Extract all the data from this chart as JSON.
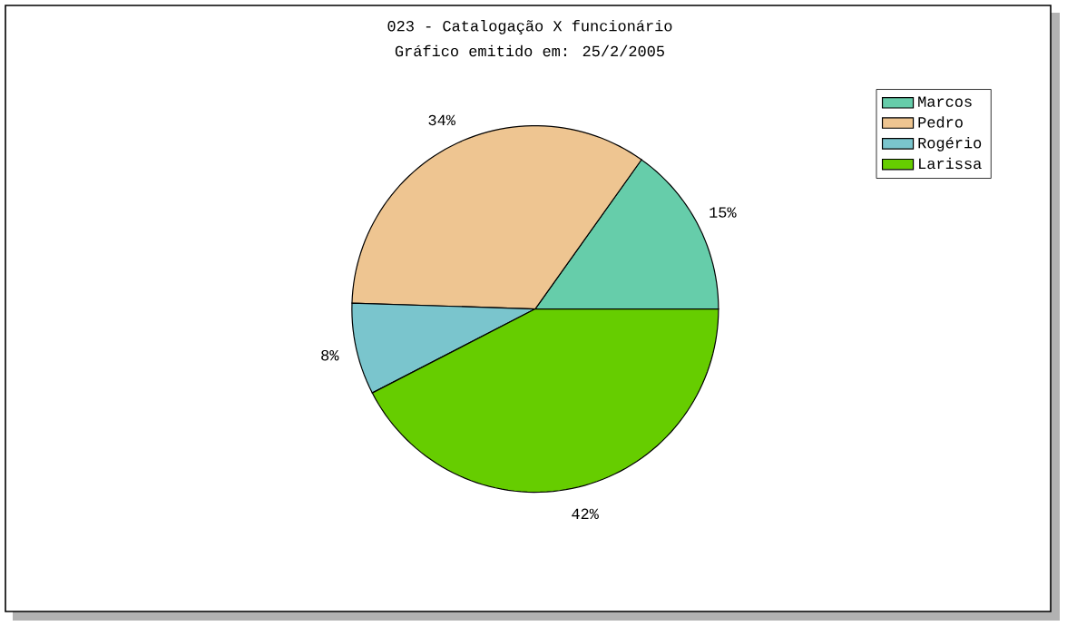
{
  "chart_data": {
    "type": "pie",
    "title": "023 - Catalogação X funcionário",
    "subtitle": "Gráfico emitido em: 25/2/2005",
    "categories": [
      "Marcos",
      "Pedro",
      "Rogério",
      "Larissa"
    ],
    "values": [
      15,
      34,
      8,
      42
    ],
    "value_labels": [
      "15%",
      "34%",
      "8%",
      "42%"
    ],
    "colors": [
      "#66cdaa",
      "#eec591",
      "#7ac5cd",
      "#66cd00"
    ],
    "legend": "top right"
  }
}
